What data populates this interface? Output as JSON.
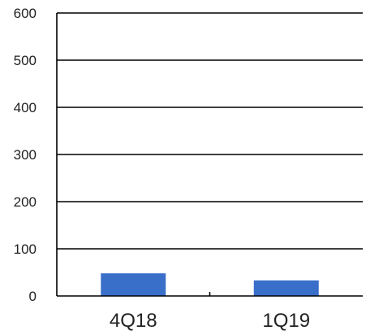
{
  "chart_data": {
    "type": "bar",
    "categories": [
      "4Q18",
      "1Q19"
    ],
    "values": [
      48,
      33
    ],
    "title": "",
    "xlabel": "",
    "ylabel": "",
    "ylim": [
      0,
      600
    ],
    "yticks": [
      "0",
      "100",
      "200",
      "300",
      "400",
      "500",
      "600"
    ],
    "grid": true,
    "legend": "none",
    "bar_color": "#3A6FC9"
  }
}
